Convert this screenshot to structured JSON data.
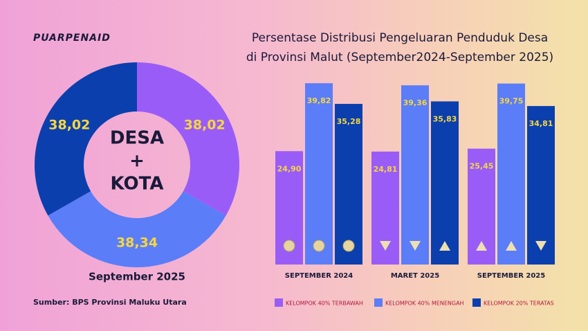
{
  "brand": "PUARPENAID",
  "source": "Sumber: BPS Provinsi Maluku Utara",
  "chart_data": [
    {
      "type": "pie",
      "center_label": [
        "DESA",
        "+",
        "KOTA"
      ],
      "subtitle": "September 2025",
      "values": [
        38.02,
        38.34,
        38.02
      ],
      "value_labels": [
        "38,02",
        "38,34",
        "38,02"
      ],
      "colors": [
        "#9a5cf7",
        "#5b7df8",
        "#0b3fae"
      ]
    },
    {
      "type": "bar",
      "title": [
        "Persentase Distribusi Pengeluaran Penduduk Desa",
        "di Provinsi Malut (September2024-September 2025)"
      ],
      "categories": [
        "SEPTEMBER 2024",
        "MARET 2025",
        "SEPTEMBER 2025"
      ],
      "ylim": [
        0,
        40
      ],
      "series": [
        {
          "name": "KELOMPOK 40% TERBAWAH",
          "color": "#9a5cf7",
          "values": [
            24.9,
            24.81,
            25.45
          ],
          "value_labels": [
            "24,90",
            "24,81",
            "25,45"
          ]
        },
        {
          "name": "KELOMPOK 40% MENENGAH",
          "color": "#5b7df8",
          "values": [
            39.82,
            39.36,
            39.75
          ],
          "value_labels": [
            "39,82",
            "39,36",
            "39,75"
          ]
        },
        {
          "name": "KELOMPOK 20% TERATAS",
          "color": "#0b3fae",
          "values": [
            35.28,
            35.83,
            34.81
          ],
          "value_labels": [
            "35,28",
            "35,83",
            "34,81"
          ]
        }
      ]
    }
  ]
}
